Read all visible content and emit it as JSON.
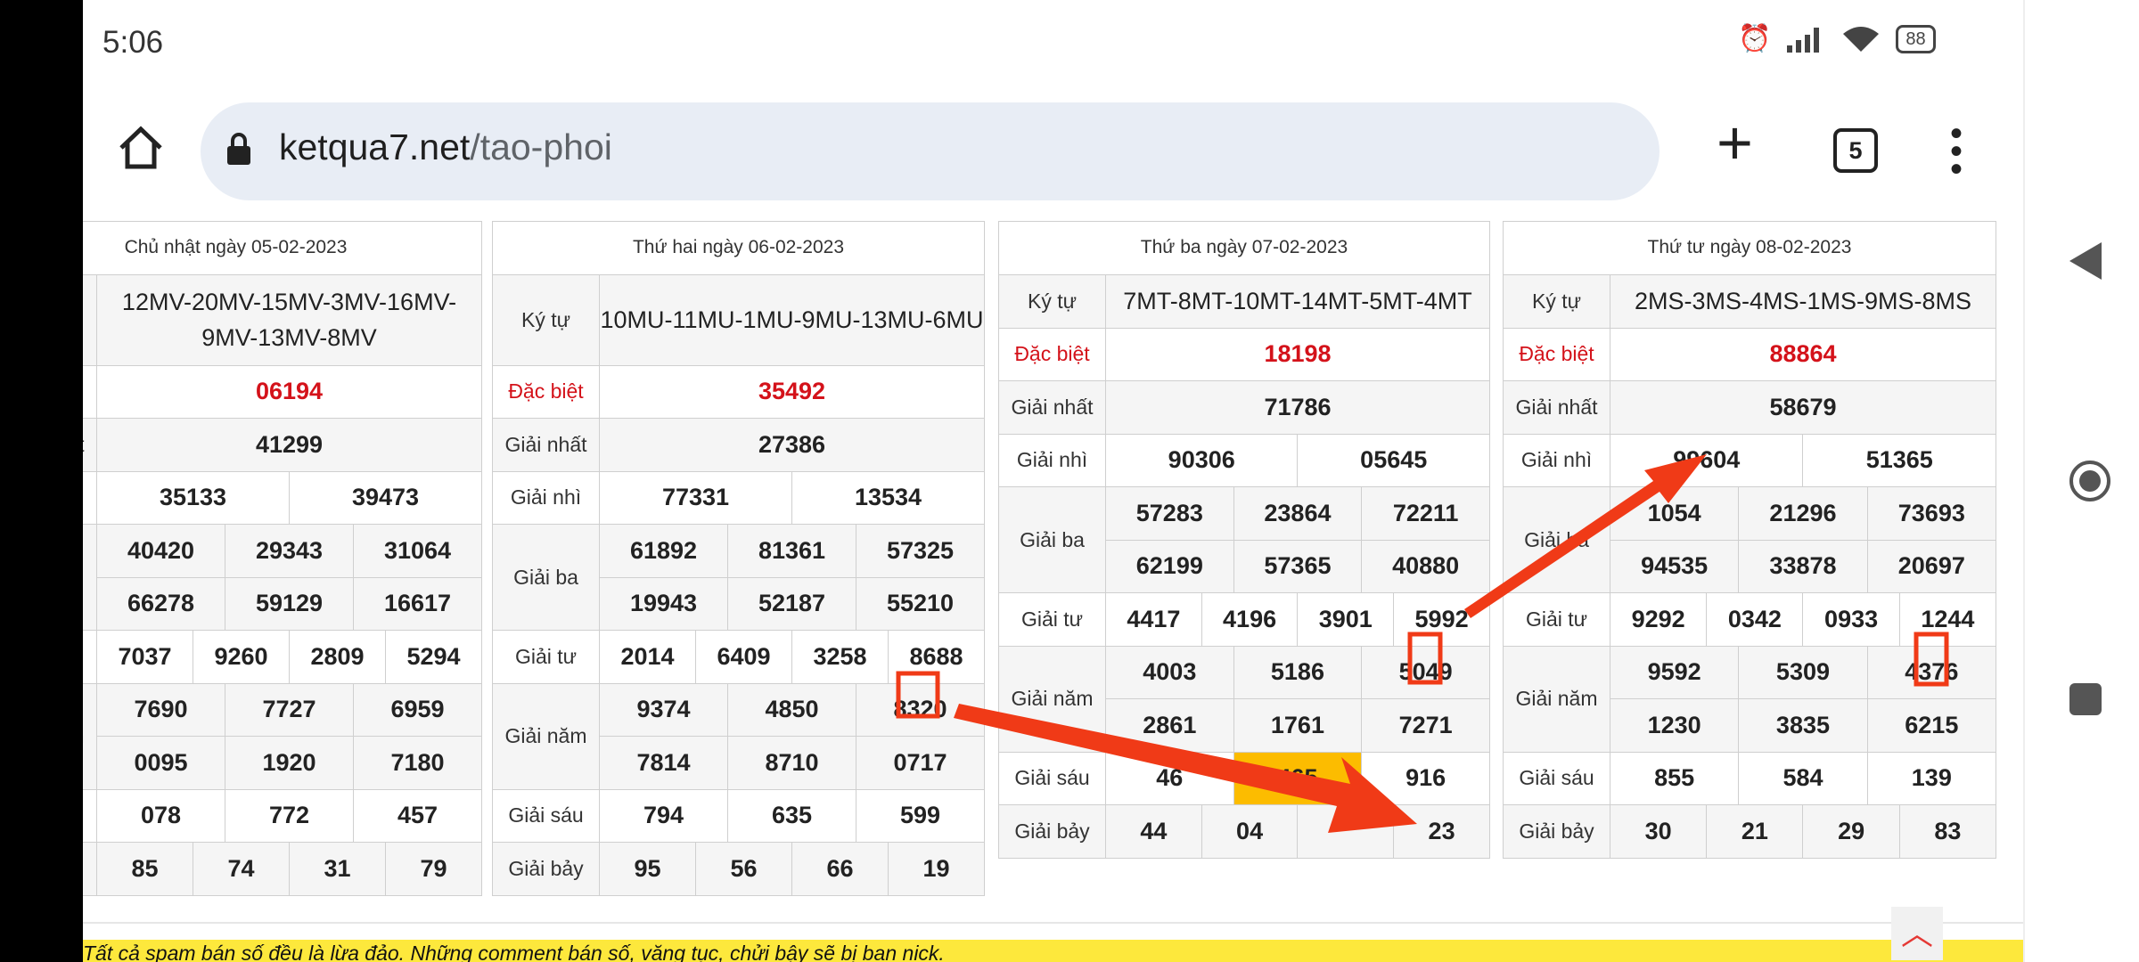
{
  "status": {
    "time": "5:06",
    "battery": "88"
  },
  "browser": {
    "url_host": "ketqua7.net",
    "url_path": "/tao-phoi",
    "tab_count": "5"
  },
  "labels": {
    "kytu": "Ký tự",
    "db": "Đặc biệt",
    "nhat": "Giải nhất",
    "nhi": "Giải nhì",
    "ba": "Giải ba",
    "tu": "Giải tư",
    "nam": "Giải năm",
    "sau": "Giải sáu",
    "bay": "Giải bảy"
  },
  "tables": [
    {
      "header": "Chủ nhật ngày 05-02-2023",
      "kytu": "12MV-20MV-15MV-3MV-16MV-9MV-13MV-8MV",
      "db": "06194",
      "nhat": "41299",
      "nhi": [
        "35133",
        "39473"
      ],
      "ba": [
        "40420",
        "29343",
        "31064",
        "66278",
        "59129",
        "16617"
      ],
      "tu": [
        "7037",
        "9260",
        "2809",
        "5294"
      ],
      "nam": [
        "7690",
        "7727",
        "6959",
        "0095",
        "1920",
        "7180"
      ],
      "sau": [
        "078",
        "772",
        "457"
      ],
      "bay": [
        "85",
        "74",
        "31",
        "79"
      ]
    },
    {
      "header": "Thứ hai ngày 06-02-2023",
      "kytu": "10MU-11MU-1MU-9MU-13MU-6MU",
      "db": "35492",
      "nhat": "27386",
      "nhi": [
        "77331",
        "13534"
      ],
      "ba": [
        "61892",
        "81361",
        "57325",
        "19943",
        "52187",
        "55210"
      ],
      "tu": [
        "2014",
        "6409",
        "3258",
        "8688"
      ],
      "nam": [
        "9374",
        "4850",
        "8320",
        "7814",
        "8710",
        "0717"
      ],
      "sau": [
        "794",
        "635",
        "599"
      ],
      "bay": [
        "95",
        "56",
        "66",
        "19"
      ]
    },
    {
      "header": "Thứ ba ngày 07-02-2023",
      "kytu": "7MT-8MT-10MT-14MT-5MT-4MT",
      "db": "18198",
      "nhat": "71786",
      "nhi": [
        "90306",
        "05645"
      ],
      "ba": [
        "57283",
        "23864",
        "72211",
        "62199",
        "57365",
        "40880"
      ],
      "tu": [
        "4417",
        "4196",
        "3901",
        "5992"
      ],
      "nam": [
        "4003",
        "5186",
        "5049",
        "2861",
        "1761",
        "7271"
      ],
      "sau": [
        "46",
        "465",
        "916"
      ],
      "bay": [
        "44",
        "04",
        "",
        "23"
      ]
    },
    {
      "header": "Thứ tư ngày 08-02-2023",
      "kytu": "2MS-3MS-4MS-1MS-9MS-8MS",
      "db": "88864",
      "nhat": "58679",
      "nhi": [
        "99604",
        "51365"
      ],
      "ba": [
        "1054",
        "21296",
        "73693",
        "94535",
        "33878",
        "20697"
      ],
      "tu": [
        "9292",
        "0342",
        "0933",
        "1244"
      ],
      "nam": [
        "9592",
        "5309",
        "4376",
        "1230",
        "3835",
        "6215"
      ],
      "sau": [
        "855",
        "584",
        "139"
      ],
      "bay": [
        "30",
        "21",
        "29",
        "83"
      ]
    }
  ],
  "highlight_color": "#fcbc00",
  "annotation_color": "#f03a17",
  "banner": "Tất cả spam bán số đều là lừa đảo. Những comment bán số, văng tục, chửi bậy sẽ bị ban nick.",
  "icons": [
    "home-icon",
    "lock-icon",
    "plus-icon",
    "tabs-icon",
    "more-vert-icon",
    "alarm-icon",
    "signal-icon",
    "wifi-icon",
    "battery-icon",
    "back-icon",
    "home-circle-icon",
    "recents-icon",
    "chevron-up-icon"
  ]
}
